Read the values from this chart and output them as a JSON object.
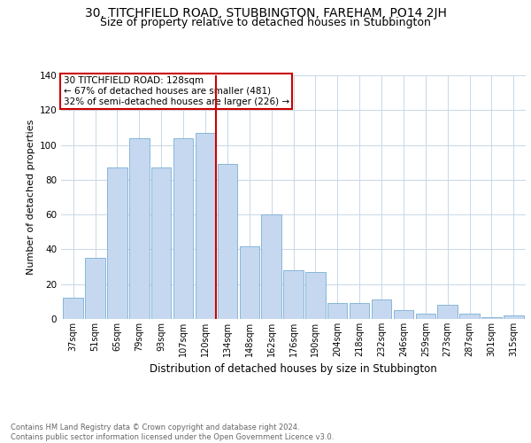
{
  "title_line1": "30, TITCHFIELD ROAD, STUBBINGTON, FAREHAM, PO14 2JH",
  "title_line2": "Size of property relative to detached houses in Stubbington",
  "xlabel": "Distribution of detached houses by size in Stubbington",
  "ylabel": "Number of detached properties",
  "categories": [
    "37sqm",
    "51sqm",
    "65sqm",
    "79sqm",
    "93sqm",
    "107sqm",
    "120sqm",
    "134sqm",
    "148sqm",
    "162sqm",
    "176sqm",
    "190sqm",
    "204sqm",
    "218sqm",
    "232sqm",
    "246sqm",
    "259sqm",
    "273sqm",
    "287sqm",
    "301sqm",
    "315sqm"
  ],
  "values": [
    12,
    35,
    87,
    104,
    87,
    104,
    107,
    89,
    42,
    60,
    28,
    27,
    9,
    9,
    11,
    5,
    3,
    8,
    3,
    1,
    2
  ],
  "bar_color": "#c5d8f0",
  "bar_edge_color": "#7aafd4",
  "vline_color": "#cc0000",
  "annotation_text": "30 TITCHFIELD ROAD: 128sqm\n← 67% of detached houses are smaller (481)\n32% of semi-detached houses are larger (226) →",
  "annotation_box_color": "#cc0000",
  "ylim": [
    0,
    140
  ],
  "yticks": [
    0,
    20,
    40,
    60,
    80,
    100,
    120,
    140
  ],
  "footer_text": "Contains HM Land Registry data © Crown copyright and database right 2024.\nContains public sector information licensed under the Open Government Licence v3.0.",
  "bg_color": "#ffffff",
  "grid_color": "#c8d8e8",
  "title_fontsize": 10,
  "subtitle_fontsize": 9,
  "bar_width": 0.9
}
